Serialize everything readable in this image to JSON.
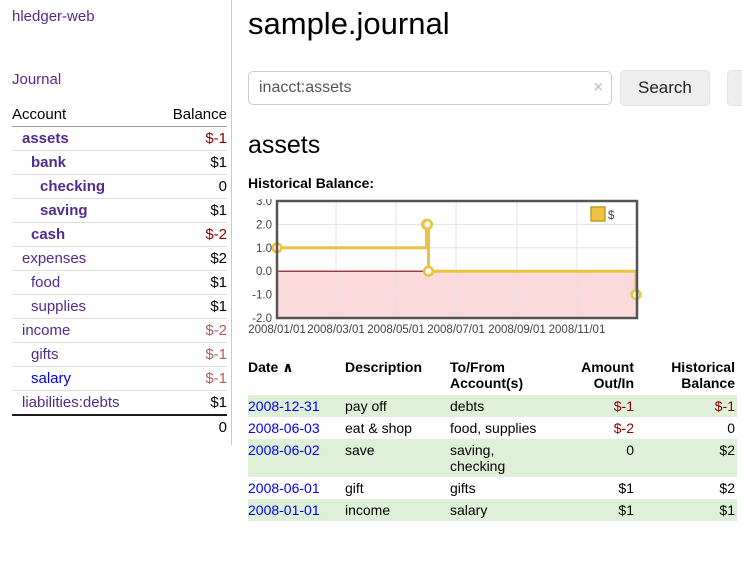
{
  "sidebar": {
    "brand": "hledger-web",
    "journal_label": "Journal",
    "accounts_table": {
      "headers": {
        "account": "Account",
        "balance": "Balance"
      },
      "rows": [
        {
          "name": "assets",
          "depth": 1,
          "balance": "$-1",
          "bold": true,
          "tone": "neg",
          "link_color": "purple"
        },
        {
          "name": "bank",
          "depth": 2,
          "balance": "$1",
          "bold": true,
          "tone": "pos",
          "link_color": "purple"
        },
        {
          "name": "checking",
          "depth": 3,
          "balance": "0",
          "bold": true,
          "tone": "pos",
          "link_color": "purple"
        },
        {
          "name": "saving",
          "depth": 3,
          "balance": "$1",
          "bold": true,
          "tone": "pos",
          "link_color": "purple"
        },
        {
          "name": "cash",
          "depth": 2,
          "balance": "$-2",
          "bold": true,
          "tone": "neg",
          "link_color": "purple"
        },
        {
          "name": "expenses",
          "depth": 1,
          "balance": "$2",
          "bold": false,
          "tone": "pos",
          "link_color": "purple"
        },
        {
          "name": "food",
          "depth": 2,
          "balance": "$1",
          "bold": false,
          "tone": "pos",
          "link_color": "purple"
        },
        {
          "name": "supplies",
          "depth": 2,
          "balance": "$1",
          "bold": false,
          "tone": "pos",
          "link_color": "purple"
        },
        {
          "name": "income",
          "depth": 1,
          "balance": "$-2",
          "bold": false,
          "tone": "neglight",
          "link_color": "purple"
        },
        {
          "name": "gifts",
          "depth": 2,
          "balance": "$-1",
          "bold": false,
          "tone": "neglight",
          "link_color": "purple"
        },
        {
          "name": "salary",
          "depth": 2,
          "balance": "$-1",
          "bold": false,
          "tone": "neglight",
          "link_color": "blue"
        },
        {
          "name": "liabilities:debts",
          "depth": 1,
          "balance": "$1",
          "bold": false,
          "tone": "pos",
          "link_color": "purple"
        }
      ],
      "total": "0"
    }
  },
  "main": {
    "title": "sample.journal",
    "search": {
      "value": "inacct:assets",
      "clear_icon": "×",
      "button_label": "Search",
      "help_label": "?"
    },
    "account_heading": "assets",
    "chart_label": "Historical Balance:",
    "register_table": {
      "headers": [
        {
          "label": "Date",
          "sort_icon": "∧",
          "align": "left"
        },
        {
          "label": "Description",
          "align": "left"
        },
        {
          "label": "To/From Account(s)",
          "align": "left"
        },
        {
          "label": "Amount Out/In",
          "align": "right"
        },
        {
          "label": "Historical Balance",
          "align": "right"
        }
      ],
      "rows": [
        {
          "date": "2008-12-31",
          "description": "pay off",
          "accounts": "debts",
          "amount": "$-1",
          "amount_tone": "neg",
          "balance": "$-1",
          "balance_tone": "neg"
        },
        {
          "date": "2008-06-03",
          "description": "eat & shop",
          "accounts": "food, supplies",
          "amount": "$-2",
          "amount_tone": "neg",
          "balance": "0",
          "balance_tone": "pos"
        },
        {
          "date": "2008-06-02",
          "description": "save",
          "accounts": "saving, checking",
          "amount": "0",
          "amount_tone": "pos",
          "balance": "$2",
          "balance_tone": "pos"
        },
        {
          "date": "2008-06-01",
          "description": "gift",
          "accounts": "gifts",
          "amount": "$1",
          "amount_tone": "pos",
          "balance": "$2",
          "balance_tone": "pos"
        },
        {
          "date": "2008-01-01",
          "description": "income",
          "accounts": "salary",
          "amount": "$1",
          "amount_tone": "pos",
          "balance": "$1",
          "balance_tone": "pos"
        }
      ]
    }
  },
  "chart_data": {
    "type": "line",
    "title": "Historical Balance:",
    "step": true,
    "series": [
      {
        "name": "$",
        "color": "#edc240",
        "points": [
          [
            "2008-01-01",
            1
          ],
          [
            "2008-06-01",
            2
          ],
          [
            "2008-06-02",
            2
          ],
          [
            "2008-06-03",
            0
          ],
          [
            "2008-12-31",
            -1
          ]
        ]
      }
    ],
    "ylim": [
      -2,
      3
    ],
    "yticks": [
      3.0,
      2.0,
      1.0,
      0.0,
      -1.0,
      -2.0
    ],
    "xlim": [
      "2008-01-01",
      "2009-01-01"
    ],
    "xticks": [
      {
        "date": "2008-01-01",
        "label": "2008/01/01"
      },
      {
        "date": "2008-03-01",
        "label": "2008/03/01"
      },
      {
        "date": "2008-05-01",
        "label": "2008/05/01"
      },
      {
        "date": "2008-07-01",
        "label": "2008/07/01"
      },
      {
        "date": "2008-09-01",
        "label": "2008/09/01"
      },
      {
        "date": "2008-11-01",
        "label": "2008/11/01"
      }
    ],
    "grid": true,
    "border_color": "#545454",
    "gridline_color": "#e3e3e3",
    "negative_region_fill": "#fadada",
    "zero_line_color": "#8b0000",
    "legend": {
      "position": "top-right",
      "label": "$",
      "swatch_color": "#edc240",
      "swatch_border": "#c29d2c"
    }
  }
}
